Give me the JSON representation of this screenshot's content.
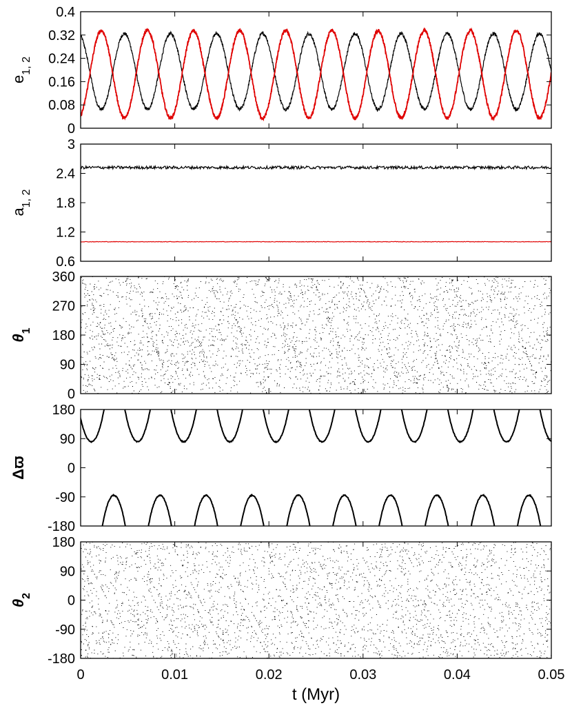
{
  "chart_data": [
    {
      "type": "line",
      "ylabel": "e_{1, 2}",
      "ylim": [
        0,
        0.4
      ],
      "yticks": [
        "0",
        "0.08",
        "0.16",
        "0.24",
        "0.32",
        "0.4"
      ],
      "x": [
        0,
        0.0025,
        0.005,
        0.0075,
        0.01,
        0.0125,
        0.015,
        0.0175,
        0.02,
        0.0225,
        0.025,
        0.0275,
        0.03,
        0.0325,
        0.035,
        0.0375,
        0.04,
        0.0425,
        0.045,
        0.0475,
        0.05
      ],
      "series": [
        {
          "color": "#000000",
          "period": 0.0049,
          "max": 0.325,
          "min": 0.065,
          "min_at": 0.0022
        },
        {
          "color": "#e00000",
          "period": 0.0049,
          "max": 0.335,
          "min": 0.035,
          "max_at": 0.0022
        }
      ]
    },
    {
      "type": "line",
      "ylabel": "a_{1, 2}",
      "ylim": [
        0.6,
        3
      ],
      "yticks": [
        "0.6",
        "1.2",
        "1.8",
        "2.4",
        "3"
      ],
      "series": [
        {
          "color": "#000000",
          "value": 2.52
        },
        {
          "color": "#e00000",
          "value": 1.0
        }
      ]
    },
    {
      "type": "scatter",
      "ylabel": "θ1",
      "ylim": [
        0,
        360
      ],
      "yticks": [
        "0",
        "90",
        "180",
        "270",
        "360"
      ],
      "color": "#000000",
      "period": 0.0049
    },
    {
      "type": "line",
      "ylabel": "Δϖ",
      "ylim": [
        -180,
        180
      ],
      "yticks": [
        "-180",
        "-90",
        "0",
        "90",
        "180"
      ],
      "color": "#000000",
      "period": 0.0049,
      "upper_branch_min": 80,
      "lower_branch_max": -85
    },
    {
      "type": "scatter",
      "ylabel": "θ2",
      "ylim": [
        -180,
        180
      ],
      "yticks": [
        "-180",
        "-90",
        "0",
        "90",
        "180"
      ],
      "color": "#000000",
      "period": 0.0049
    }
  ],
  "xaxis": {
    "label": "t (Myr)",
    "xlim": [
      0,
      0.05
    ],
    "ticks": [
      "0",
      "0.01",
      "0.02",
      "0.03",
      "0.04",
      "0.05"
    ]
  }
}
